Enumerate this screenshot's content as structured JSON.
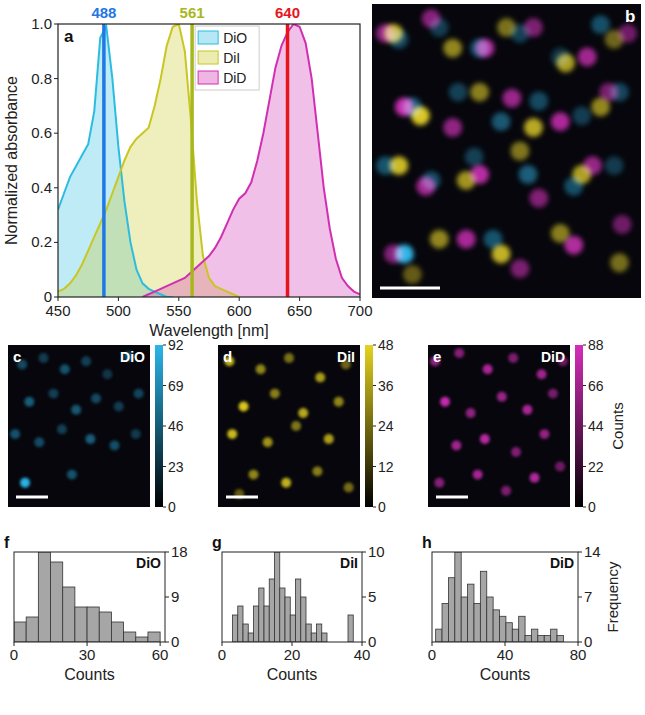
{
  "chart_data": [
    {
      "type": "line",
      "panel": "a",
      "xlabel": "Wavelength [nm]",
      "ylabel": "Normalized absorbance",
      "x": [
        450,
        455,
        460,
        465,
        470,
        475,
        480,
        485,
        490,
        495,
        500,
        505,
        510,
        515,
        520,
        525,
        530,
        535,
        540,
        545,
        550,
        555,
        560,
        565,
        570,
        575,
        580,
        585,
        590,
        595,
        600,
        605,
        610,
        615,
        620,
        625,
        630,
        635,
        640,
        645,
        650,
        655,
        660,
        665,
        670,
        675,
        680,
        685,
        690,
        695,
        700
      ],
      "series": [
        {
          "name": "DiO",
          "color": "#2bbde0",
          "values": [
            0.32,
            0.38,
            0.44,
            0.48,
            0.52,
            0.56,
            0.68,
            0.95,
            0.99,
            0.8,
            0.55,
            0.35,
            0.2,
            0.1,
            0.05,
            0.03,
            0.02,
            0.01,
            0,
            0,
            null,
            null,
            null,
            null,
            null,
            null,
            null,
            null,
            null,
            null,
            null,
            null,
            null,
            null,
            null,
            null,
            null,
            null,
            null,
            null,
            null,
            null,
            null,
            null,
            null,
            null,
            null,
            null,
            null,
            null,
            null
          ]
        },
        {
          "name": "DiI",
          "color": "#c9c623",
          "values": [
            0.02,
            0.03,
            0.05,
            0.08,
            0.12,
            0.17,
            0.22,
            0.27,
            0.32,
            0.38,
            0.44,
            0.5,
            0.55,
            0.58,
            0.6,
            0.62,
            0.7,
            0.8,
            0.92,
            0.99,
            1.0,
            0.9,
            0.65,
            0.35,
            0.15,
            0.07,
            0.04,
            0.03,
            0.02,
            0.01,
            0,
            null,
            null,
            null,
            null,
            null,
            null,
            null,
            null,
            null,
            null,
            null,
            null,
            null,
            null,
            null,
            null,
            null,
            null,
            null,
            null
          ]
        },
        {
          "name": "DiD",
          "color": "#d12fb2",
          "values": [
            null,
            null,
            null,
            null,
            null,
            null,
            null,
            null,
            null,
            null,
            null,
            null,
            null,
            null,
            0,
            0.01,
            0.02,
            0.03,
            0.04,
            0.05,
            0.06,
            0.07,
            0.09,
            0.11,
            0.13,
            0.15,
            0.18,
            0.22,
            0.27,
            0.32,
            0.36,
            0.38,
            0.42,
            0.5,
            0.6,
            0.72,
            0.84,
            0.92,
            0.97,
            1.0,
            0.99,
            0.93,
            0.8,
            0.6,
            0.4,
            0.25,
            0.14,
            0.07,
            0.04,
            0.02,
            0.01
          ]
        }
      ],
      "vlines": [
        {
          "x": 488,
          "color": "#1f78e6"
        },
        {
          "x": 561,
          "color": "#a8b81c"
        },
        {
          "x": 640,
          "color": "#e8141c"
        }
      ],
      "xlim": [
        450,
        700
      ],
      "xticks": [
        450,
        500,
        550,
        600,
        650,
        700
      ],
      "ylim": [
        0,
        1
      ],
      "yticks": [
        0,
        0.2,
        0.4,
        0.6,
        0.8,
        {
          "value": 1,
          "label": "1.0"
        }
      ],
      "legend": "top",
      "grid": false
    },
    {
      "type": "image",
      "panel": "b"
    },
    {
      "type": "image",
      "panel": "c",
      "title": "DiO",
      "color": "#2ab6ea",
      "x": [
        0.1,
        0.25,
        0.4,
        0.55,
        0.7,
        0.85,
        0.15,
        0.32,
        0.48,
        0.62,
        0.78,
        0.92,
        0.05,
        0.22,
        0.38,
        0.58,
        0.75,
        0.9,
        0.12,
        0.45
      ],
      "y": [
        0.12,
        0.08,
        0.15,
        0.1,
        0.18,
        0.07,
        0.35,
        0.3,
        0.4,
        0.33,
        0.38,
        0.3,
        0.55,
        0.6,
        0.52,
        0.58,
        0.62,
        0.55,
        0.85,
        0.8
      ],
      "values": [
        35,
        28,
        40,
        30,
        25,
        38,
        45,
        30,
        42,
        35,
        28,
        33,
        40,
        36,
        30,
        45,
        38,
        27,
        90,
        40
      ],
      "colorbar_lim": [
        0,
        92
      ],
      "colorbar_ticks": [
        0,
        23,
        46,
        69,
        92
      ]
    },
    {
      "type": "image",
      "panel": "d",
      "title": "DiI",
      "color": "#e6d21e",
      "x": [
        0.08,
        0.3,
        0.5,
        0.72,
        0.9,
        0.18,
        0.4,
        0.6,
        0.85,
        0.1,
        0.35,
        0.55,
        0.78,
        0.25,
        0.48,
        0.7,
        0.92,
        0.15
      ],
      "y": [
        0.1,
        0.15,
        0.08,
        0.2,
        0.12,
        0.38,
        0.3,
        0.42,
        0.35,
        0.55,
        0.6,
        0.5,
        0.58,
        0.8,
        0.85,
        0.78,
        0.88,
        0.92
      ],
      "values": [
        40,
        30,
        25,
        35,
        22,
        45,
        28,
        38,
        30,
        42,
        33,
        26,
        36,
        30,
        40,
        28,
        24,
        20
      ],
      "colorbar_lim": [
        0,
        48
      ],
      "colorbar_ticks": [
        0,
        12,
        24,
        36,
        48
      ]
    },
    {
      "type": "image",
      "panel": "e",
      "title": "DiD",
      "color": "#d62dba",
      "x": [
        0.05,
        0.22,
        0.42,
        0.6,
        0.8,
        0.95,
        0.12,
        0.3,
        0.52,
        0.7,
        0.88,
        0.2,
        0.4,
        0.62,
        0.82,
        0.08,
        0.35,
        0.55,
        0.75,
        0.93
      ],
      "y": [
        0.1,
        0.05,
        0.15,
        0.08,
        0.18,
        0.1,
        0.35,
        0.42,
        0.32,
        0.4,
        0.3,
        0.62,
        0.58,
        0.66,
        0.55,
        0.85,
        0.8,
        0.9,
        0.82,
        0.75
      ],
      "values": [
        60,
        55,
        70,
        50,
        65,
        45,
        80,
        58,
        62,
        70,
        48,
        66,
        75,
        52,
        60,
        55,
        68,
        50,
        72,
        45
      ],
      "colorbar_lim": [
        0,
        88
      ],
      "colorbar_ticks": [
        0,
        22,
        44,
        66,
        88
      ],
      "colorbar_label": "Counts"
    },
    {
      "type": "histogram",
      "panel": "f",
      "title": "DiO",
      "xlabel": "Counts",
      "bins": [
        0,
        5,
        10,
        15,
        20,
        25,
        30,
        35,
        40,
        45,
        50,
        55,
        60
      ],
      "counts": [
        4,
        5,
        18,
        16,
        11,
        7,
        7,
        6,
        4,
        2,
        1,
        2
      ],
      "xlim": [
        0,
        62
      ],
      "xticks": [
        0,
        30,
        60
      ],
      "ylim": [
        0,
        18
      ],
      "yticks": [
        0,
        9,
        18
      ]
    },
    {
      "type": "histogram",
      "panel": "g",
      "title": "DiI",
      "xlabel": "Counts",
      "bins": [
        3,
        4.5,
        6,
        7.5,
        9,
        10.5,
        12,
        13.5,
        15,
        16.5,
        18,
        19.5,
        21,
        22.5,
        24,
        25.5,
        27,
        28.5,
        30,
        31.5,
        33,
        34.5,
        36,
        37.5
      ],
      "counts": [
        3,
        4,
        2,
        1,
        4,
        6,
        4,
        7,
        10,
        6,
        5,
        3,
        7,
        5,
        2,
        1,
        2,
        1,
        0,
        0,
        0,
        0,
        3
      ],
      "xlim": [
        0,
        40
      ],
      "xticks": [
        0,
        20,
        40
      ],
      "ylim": [
        0,
        10
      ],
      "yticks": [
        0,
        5,
        10
      ]
    },
    {
      "type": "histogram",
      "panel": "h",
      "title": "DiD",
      "xlabel": "Counts",
      "ylabel": "Frequency",
      "bins": [
        2,
        5.5,
        9,
        12.5,
        16,
        19.5,
        23,
        26.5,
        30,
        33.5,
        37,
        40.5,
        44,
        47.5,
        51,
        54.5,
        58,
        61.5,
        65,
        68.5,
        72
      ],
      "counts": [
        2,
        6,
        10,
        14,
        7,
        9,
        6,
        11,
        7,
        5,
        4,
        3,
        2,
        4,
        1,
        2,
        1,
        1,
        2,
        1
      ],
      "xlim": [
        0,
        80
      ],
      "xticks": [
        0,
        40,
        80
      ],
      "ylim": [
        0,
        14
      ],
      "yticks": [
        0,
        7,
        14
      ]
    }
  ]
}
